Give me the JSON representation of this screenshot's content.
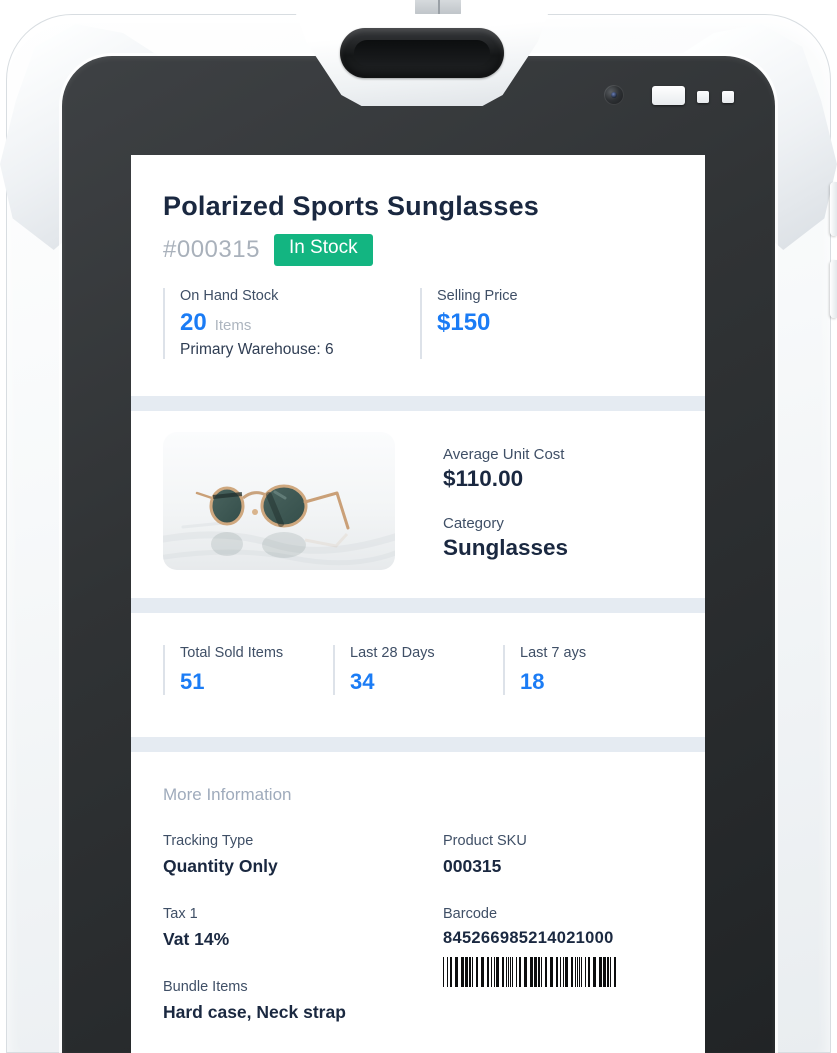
{
  "product": {
    "title": "Polarized Sports Sunglasses",
    "sku_display": "#000315",
    "status_badge": "In Stock",
    "on_hand": {
      "label": "On Hand Stock",
      "value": "20",
      "unit": "Items",
      "warehouse": "Primary Warehouse: 6"
    },
    "selling_price": {
      "label": "Selling Price",
      "value": "$150"
    },
    "avg_unit_cost": {
      "label": "Average Unit Cost",
      "value": "$110.00"
    },
    "category": {
      "label": "Category",
      "value": "Sunglasses"
    },
    "sales": [
      {
        "label": "Total Sold Items",
        "value": "51"
      },
      {
        "label": "Last 28 Days",
        "value": "34"
      },
      {
        "label": "Last 7 ays",
        "value": "18"
      }
    ],
    "more_info": {
      "heading": "More Information",
      "tracking_type": {
        "label": "Tracking Type",
        "value": "Quantity Only"
      },
      "product_sku": {
        "label": "Product SKU",
        "value": "000315"
      },
      "tax": {
        "label": "Tax 1",
        "value": "Vat 14%"
      },
      "barcode": {
        "label": "Barcode",
        "value": "845266985214021000"
      },
      "bundle": {
        "label": "Bundle Items",
        "value": "Hard case, Neck strap"
      }
    }
  },
  "colors": {
    "accent_blue": "#1b7cf5",
    "badge_green": "#13b581",
    "title_navy": "#1a2840",
    "label_slate": "#3f4f66",
    "muted_gray": "#a9b1bb",
    "section_band": "#e5ebf2",
    "bezel_dark": "#2b2e30",
    "case_white": "#f3f5f7"
  }
}
